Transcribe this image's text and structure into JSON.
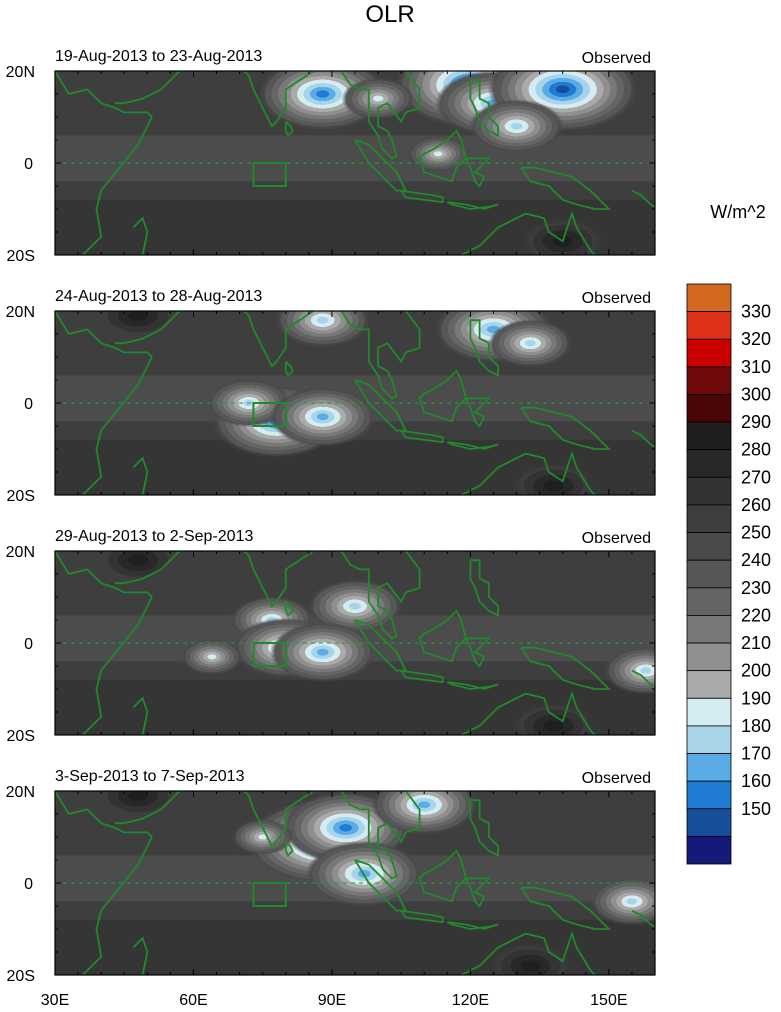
{
  "figure": {
    "title": "OLR",
    "units": "W/m^2"
  },
  "chart_data": {
    "type": "heatmap",
    "title": "OLR",
    "colorbar": {
      "label": "W/m^2",
      "levels": [
        330,
        320,
        310,
        300,
        290,
        280,
        270,
        260,
        250,
        240,
        230,
        220,
        210,
        200,
        190,
        180,
        170,
        160,
        150
      ],
      "colors": [
        "#d2691e",
        "#e03218",
        "#c80000",
        "#6e0a0a",
        "#4a0606",
        "#1f1f1f",
        "#282828",
        "#333333",
        "#3e3e3e",
        "#4a4a4a",
        "#575757",
        "#656565",
        "#787878",
        "#8f8f8f",
        "#aaaaaa",
        "#d4ecf2",
        "#a8d4ea",
        "#5aabe6",
        "#1e7cd2",
        "#164f99",
        "#151a7a"
      ]
    },
    "xaxis": {
      "ticks": [
        "30E",
        "60E",
        "90E",
        "120E",
        "150E"
      ],
      "values": [
        30,
        60,
        90,
        120,
        150
      ],
      "range": [
        30,
        160
      ]
    },
    "yaxis": {
      "ticks": [
        "20N",
        "0",
        "20S"
      ],
      "values": [
        20,
        0,
        -20
      ],
      "range": [
        -20,
        20
      ]
    },
    "panels": [
      {
        "period": "19-Aug-2013 to 23-Aug-2013",
        "label": "Observed",
        "low_olr_centers": [
          {
            "lon": 88,
            "lat": 15,
            "value": 160
          },
          {
            "lon": 120,
            "lat": 17,
            "value": 150
          },
          {
            "lon": 125,
            "lat": 13,
            "value": 165
          },
          {
            "lon": 140,
            "lat": 16,
            "value": 150
          },
          {
            "lon": 100,
            "lat": 14,
            "value": 185
          },
          {
            "lon": 130,
            "lat": 8,
            "value": 175
          },
          {
            "lon": 113,
            "lat": 2,
            "value": 190
          }
        ],
        "high_olr_centers": [
          {
            "lon": 140,
            "lat": -17,
            "value": 300
          }
        ]
      },
      {
        "period": "24-Aug-2013 to 28-Aug-2013",
        "label": "Observed",
        "low_olr_centers": [
          {
            "lon": 78,
            "lat": -4,
            "value": 160
          },
          {
            "lon": 72,
            "lat": 0,
            "value": 180
          },
          {
            "lon": 88,
            "lat": -3,
            "value": 170
          },
          {
            "lon": 88,
            "lat": 18,
            "value": 175
          },
          {
            "lon": 125,
            "lat": 16,
            "value": 165
          },
          {
            "lon": 133,
            "lat": 13,
            "value": 180
          }
        ],
        "high_olr_centers": [
          {
            "lon": 48,
            "lat": 19,
            "value": 300
          },
          {
            "lon": 138,
            "lat": -18,
            "value": 300
          }
        ]
      },
      {
        "period": "29-Aug-2013 to 2-Sep-2013",
        "label": "Observed",
        "low_olr_centers": [
          {
            "lon": 77,
            "lat": 5,
            "value": 180
          },
          {
            "lon": 80,
            "lat": -1,
            "value": 170
          },
          {
            "lon": 95,
            "lat": 8,
            "value": 175
          },
          {
            "lon": 88,
            "lat": -2,
            "value": 170
          },
          {
            "lon": 64,
            "lat": -3,
            "value": 190
          },
          {
            "lon": 158,
            "lat": -6,
            "value": 180
          }
        ],
        "high_olr_centers": [
          {
            "lon": 48,
            "lat": 18,
            "value": 300
          },
          {
            "lon": 138,
            "lat": -18,
            "value": 300
          }
        ]
      },
      {
        "period": "3-Sep-2013 to 7-Sep-2013",
        "label": "Observed",
        "low_olr_centers": [
          {
            "lon": 88,
            "lat": 9,
            "value": 150
          },
          {
            "lon": 93,
            "lat": 12,
            "value": 160
          },
          {
            "lon": 97,
            "lat": 2,
            "value": 165
          },
          {
            "lon": 110,
            "lat": 17,
            "value": 170
          },
          {
            "lon": 75,
            "lat": 10,
            "value": 190
          },
          {
            "lon": 155,
            "lat": -4,
            "value": 180
          }
        ],
        "high_olr_centers": [
          {
            "lon": 48,
            "lat": 19,
            "value": 300
          },
          {
            "lon": 133,
            "lat": -18,
            "value": 300
          }
        ]
      }
    ],
    "target_box": {
      "lon": [
        73,
        80
      ],
      "lat": [
        -5,
        0
      ]
    }
  }
}
